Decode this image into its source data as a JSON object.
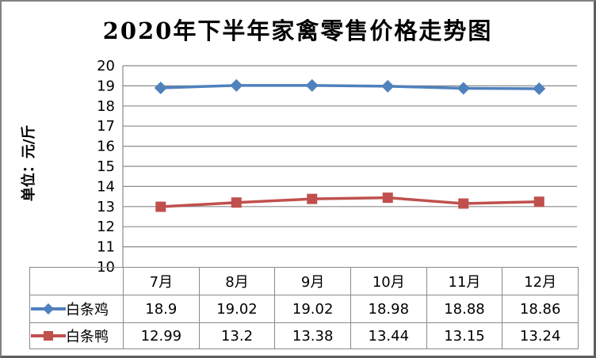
{
  "chart_data": {
    "type": "line",
    "title": "2020年下半年家禽零售价格走势图",
    "ylabel": "单位：元/斤",
    "categories": [
      "7月",
      "8月",
      "9月",
      "10月",
      "11月",
      "12月"
    ],
    "series": [
      {
        "name": "白条鸡",
        "marker": "diamond",
        "color": "#4F81BD",
        "values": [
          18.9,
          19.02,
          19.02,
          18.98,
          18.88,
          18.86
        ]
      },
      {
        "name": "白条鸭",
        "marker": "square",
        "color": "#C0504D",
        "values": [
          12.99,
          13.2,
          13.38,
          13.44,
          13.15,
          13.24
        ]
      }
    ],
    "ylim": [
      10,
      20
    ],
    "ytick_step": 1,
    "grid": true,
    "gridline_color": "#8a8a8a",
    "axis_text_color": "#000000",
    "legend_position": "data-table-left",
    "data_table": true
  }
}
